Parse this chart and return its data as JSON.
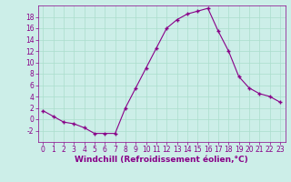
{
  "x": [
    0,
    1,
    2,
    3,
    4,
    5,
    6,
    7,
    8,
    9,
    10,
    11,
    12,
    13,
    14,
    15,
    16,
    17,
    18,
    19,
    20,
    21,
    22,
    23
  ],
  "y": [
    1.5,
    0.5,
    -0.5,
    -0.8,
    -1.5,
    -2.5,
    -2.5,
    -2.5,
    2.0,
    5.5,
    9.0,
    12.5,
    16.0,
    17.5,
    18.5,
    19.0,
    19.5,
    15.5,
    12.0,
    7.5,
    5.5,
    4.5,
    4.0,
    3.0
  ],
  "line_color": "#880088",
  "marker": "+",
  "markersize": 3,
  "markeredgewidth": 1.0,
  "linewidth": 0.8,
  "bg_color": "#cceee8",
  "grid_color": "#aaddcc",
  "xlabel": "Windchill (Refroidissement éolien,°C)",
  "xlabel_fontsize": 6.5,
  "tick_fontsize": 5.5,
  "ylim": [
    -4,
    20
  ],
  "xlim": [
    -0.5,
    23.5
  ],
  "yticks": [
    -2,
    0,
    2,
    4,
    6,
    8,
    10,
    12,
    14,
    16,
    18
  ],
  "xticks": [
    0,
    1,
    2,
    3,
    4,
    5,
    6,
    7,
    8,
    9,
    10,
    11,
    12,
    13,
    14,
    15,
    16,
    17,
    18,
    19,
    20,
    21,
    22,
    23
  ]
}
